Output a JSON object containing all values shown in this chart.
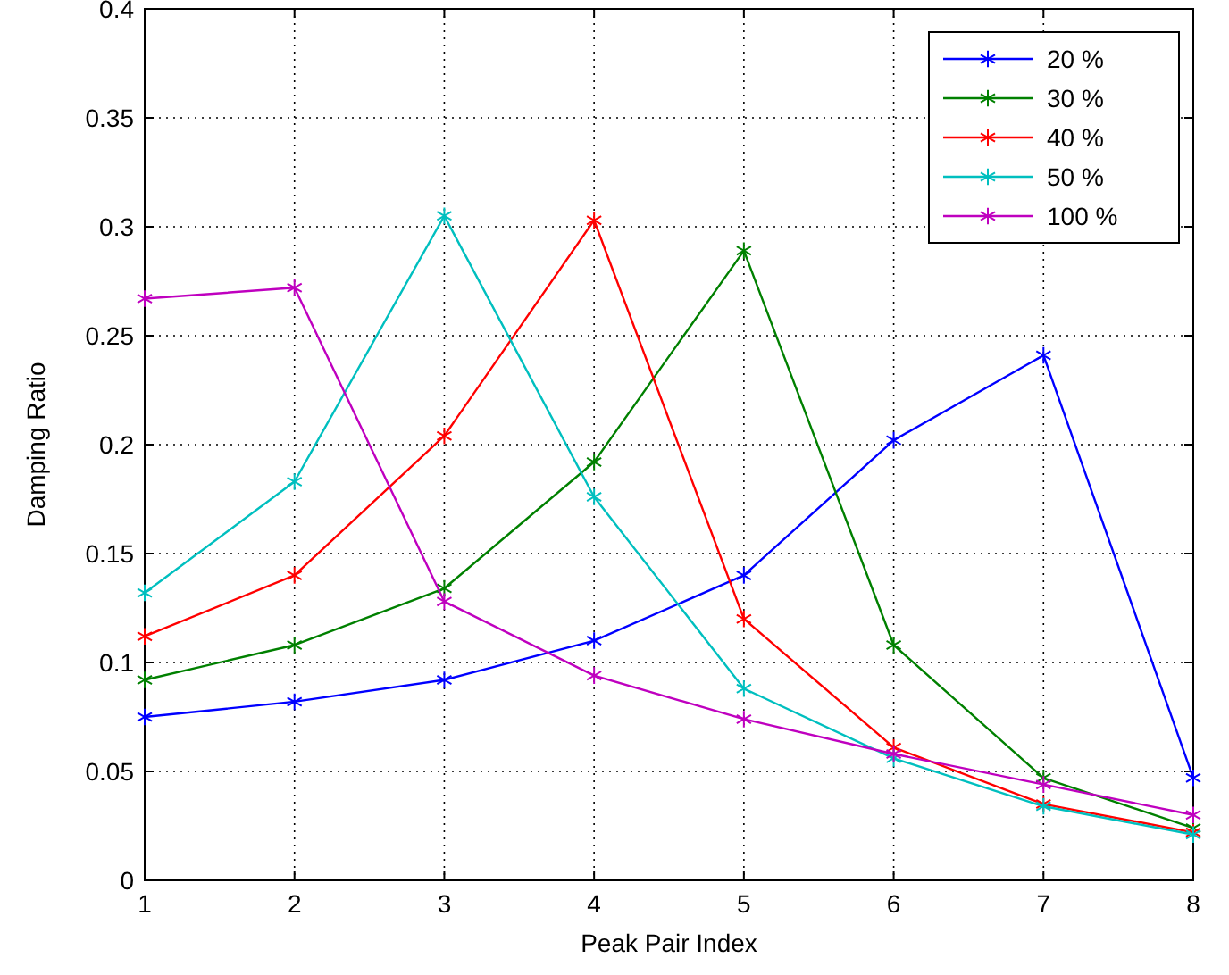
{
  "chart_data": {
    "type": "line",
    "xlabel": "Peak Pair Index",
    "ylabel": "Damping Ratio",
    "x": [
      1,
      2,
      3,
      4,
      5,
      6,
      7,
      8
    ],
    "series": [
      {
        "name": "20 %",
        "color": "#0000ff",
        "values": [
          0.075,
          0.082,
          0.092,
          0.11,
          0.14,
          0.202,
          0.241,
          0.047
        ]
      },
      {
        "name": "30 %",
        "color": "#008000",
        "values": [
          0.092,
          0.108,
          0.134,
          0.192,
          0.289,
          0.108,
          0.047,
          0.024
        ]
      },
      {
        "name": "40 %",
        "color": "#ff0000",
        "values": [
          0.112,
          0.14,
          0.204,
          0.303,
          0.12,
          0.061,
          0.035,
          0.022
        ]
      },
      {
        "name": "50 %",
        "color": "#00bfbf",
        "values": [
          0.132,
          0.183,
          0.305,
          0.176,
          0.088,
          0.056,
          0.034,
          0.021
        ]
      },
      {
        "name": "100 %",
        "color": "#bf00bf",
        "values": [
          0.267,
          0.272,
          0.128,
          0.094,
          0.074,
          0.058,
          0.044,
          0.03
        ]
      }
    ],
    "xlim": [
      1,
      8
    ],
    "xticks": [
      1,
      2,
      3,
      4,
      5,
      6,
      7,
      8
    ],
    "ylim": [
      0,
      0.4
    ],
    "yticks": [
      0,
      0.05,
      0.1,
      0.15,
      0.2,
      0.25,
      0.3,
      0.35,
      0.4
    ],
    "grid": true,
    "legend": "top right",
    "marker": "cross",
    "line_style": "solid"
  }
}
